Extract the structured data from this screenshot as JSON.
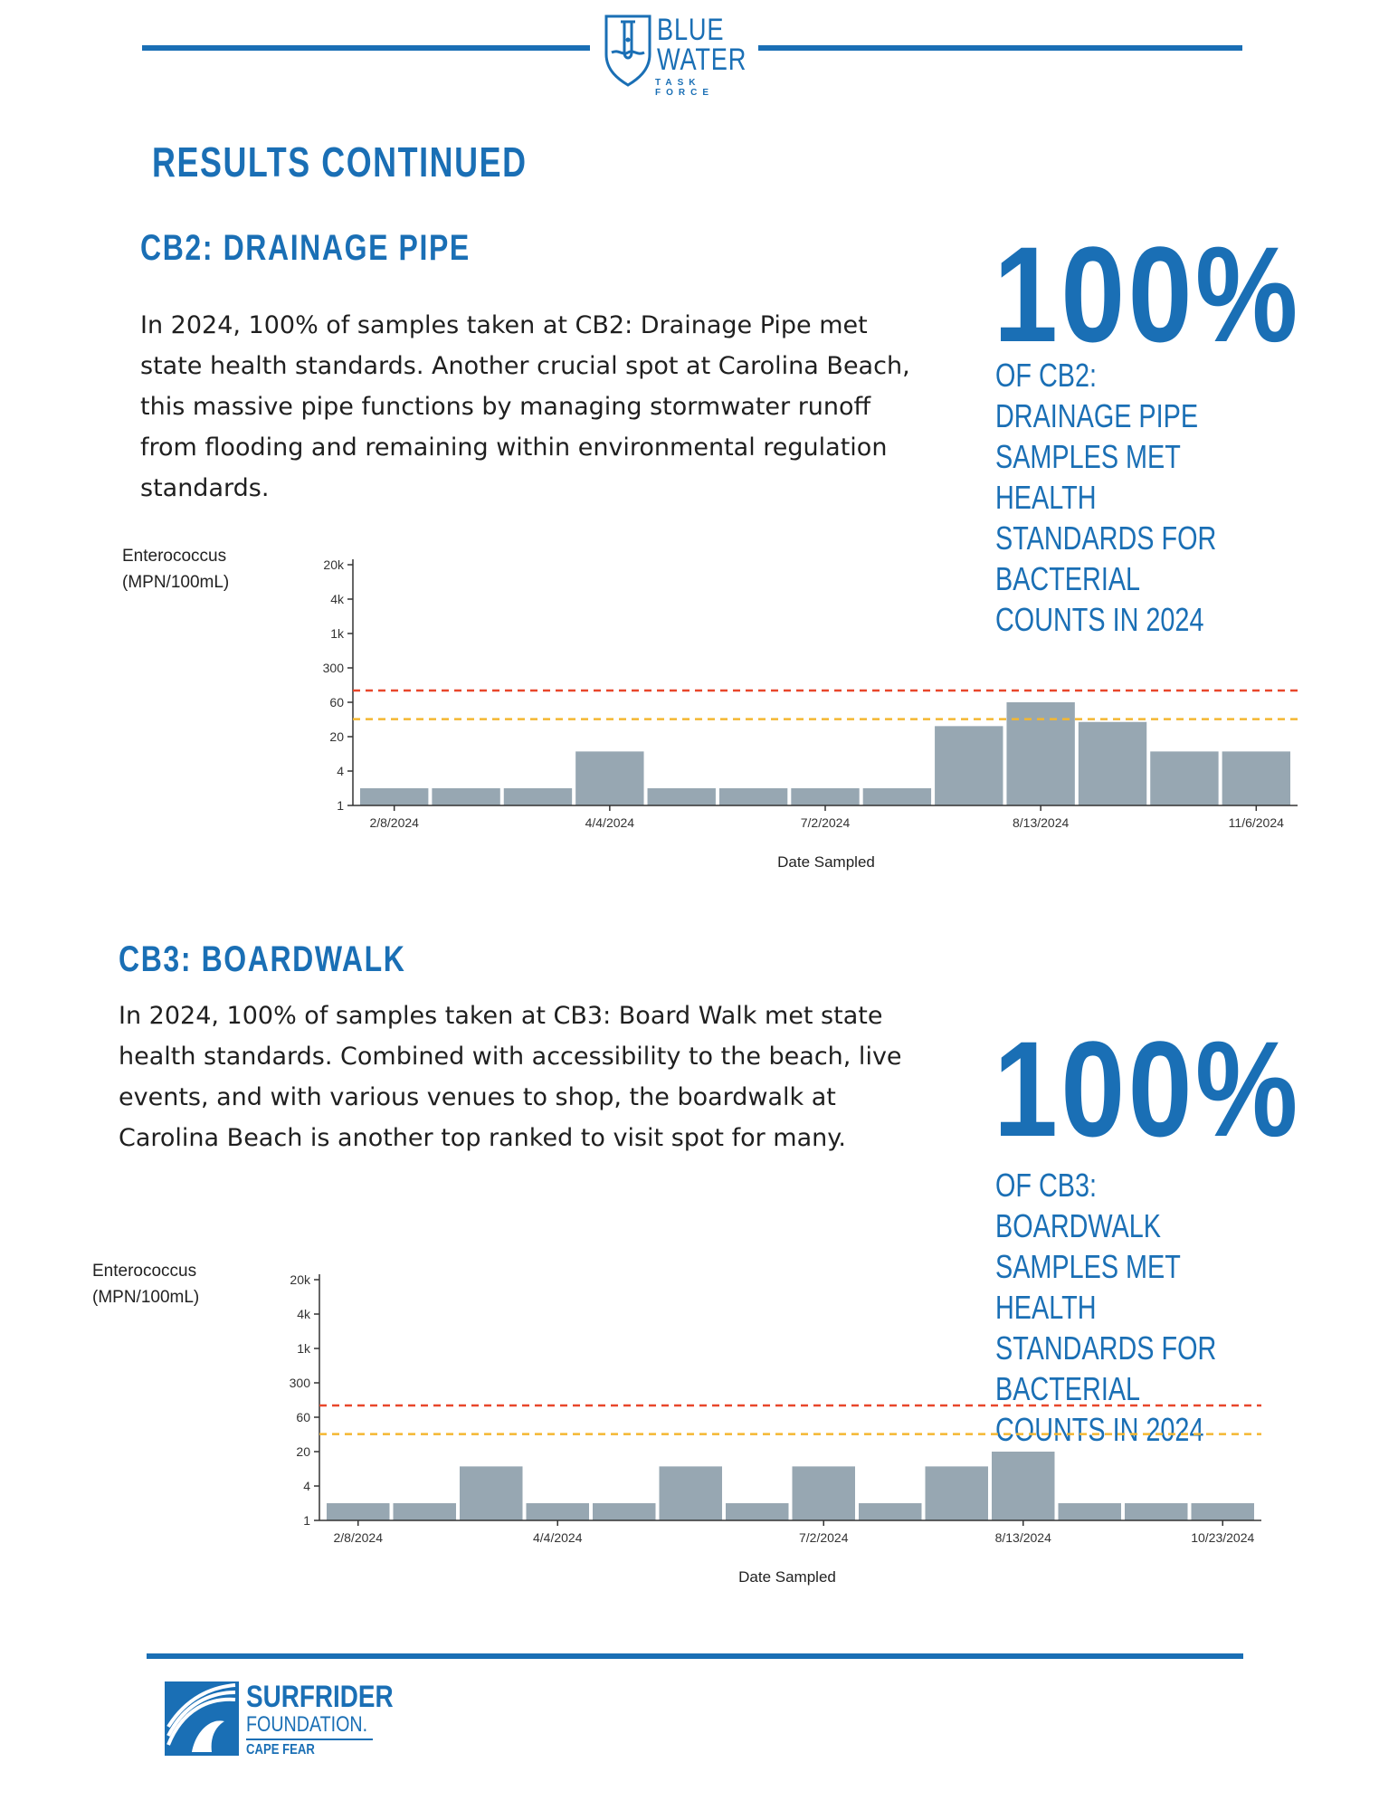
{
  "header": {
    "logo_line1": "BLUE",
    "logo_line2": "WATER",
    "logo_line3": "TASK FORCE"
  },
  "page_title": "RESULTS CONTINUED",
  "sections": [
    {
      "title": "CB2: DRAINAGE PIPE",
      "body": "In 2024, 100% of samples taken at CB2: Drainage Pipe met state health standards. Another crucial spot at Carolina Beach, this massive pipe functions by managing stormwater runoff from flooding and remaining within environmental regulation standards.",
      "stat_value": "100%",
      "stat_caption": "OF CB2: DRAINAGE PIPE SAMPLES MET HEALTH STANDARDS FOR BACTERIAL COUNTS IN 2024"
    },
    {
      "title": "CB3: BOARDWALK",
      "body": "In 2024, 100% of samples taken at CB3: Board Walk met state health standards. Combined with accessibility to the beach, live events, and with various venues to shop, the boardwalk at Carolina Beach is another top ranked to visit spot for many.",
      "stat_value": "100%",
      "stat_caption": "OF CB3: BOARDWALK SAMPLES MET HEALTH STANDARDS FOR BACTERIAL COUNTS IN 2024"
    }
  ],
  "chart_data": [
    {
      "type": "bar",
      "ylabel_line1": "Enterococcus",
      "ylabel_line2": "(MPN/100mL)",
      "xlabel": "Date Sampled",
      "y_scale": "log",
      "y_ticks": [
        "1",
        "4",
        "20",
        "60",
        "300",
        "1k",
        "4k",
        "20k"
      ],
      "x_tick_labels": [
        "2/8/2024",
        "4/4/2024",
        "7/2/2024",
        "8/13/2024",
        "11/6/2024"
      ],
      "values": [
        2,
        2,
        2,
        10,
        2,
        2,
        2,
        2,
        28,
        60,
        32,
        10,
        10
      ],
      "threshold_red": 104,
      "threshold_yellow": 35,
      "colors": {
        "bar": "#97a7b2",
        "red_line": "#e8472b",
        "yellow_line": "#f4b731"
      }
    },
    {
      "type": "bar",
      "ylabel_line1": "Enterococcus",
      "ylabel_line2": "(MPN/100mL)",
      "xlabel": "Date Sampled",
      "y_scale": "log",
      "y_ticks": [
        "1",
        "4",
        "20",
        "60",
        "300",
        "1k",
        "4k",
        "20k"
      ],
      "x_tick_labels": [
        "2/8/2024",
        "4/4/2024",
        "7/2/2024",
        "8/13/2024",
        "10/23/2024"
      ],
      "values": [
        2,
        2,
        10,
        2,
        2,
        10,
        2,
        10,
        2,
        10,
        20,
        2,
        2,
        2
      ],
      "threshold_red": 104,
      "threshold_yellow": 35,
      "colors": {
        "bar": "#97a7b2",
        "red_line": "#e8472b",
        "yellow_line": "#f4b731"
      }
    }
  ],
  "footer": {
    "logo_line1": "SURFRIDER",
    "logo_line2": "FOUNDATION.",
    "logo_line3": "CAPE FEAR"
  },
  "colors": {
    "brand_blue": "#1a6fb5"
  }
}
